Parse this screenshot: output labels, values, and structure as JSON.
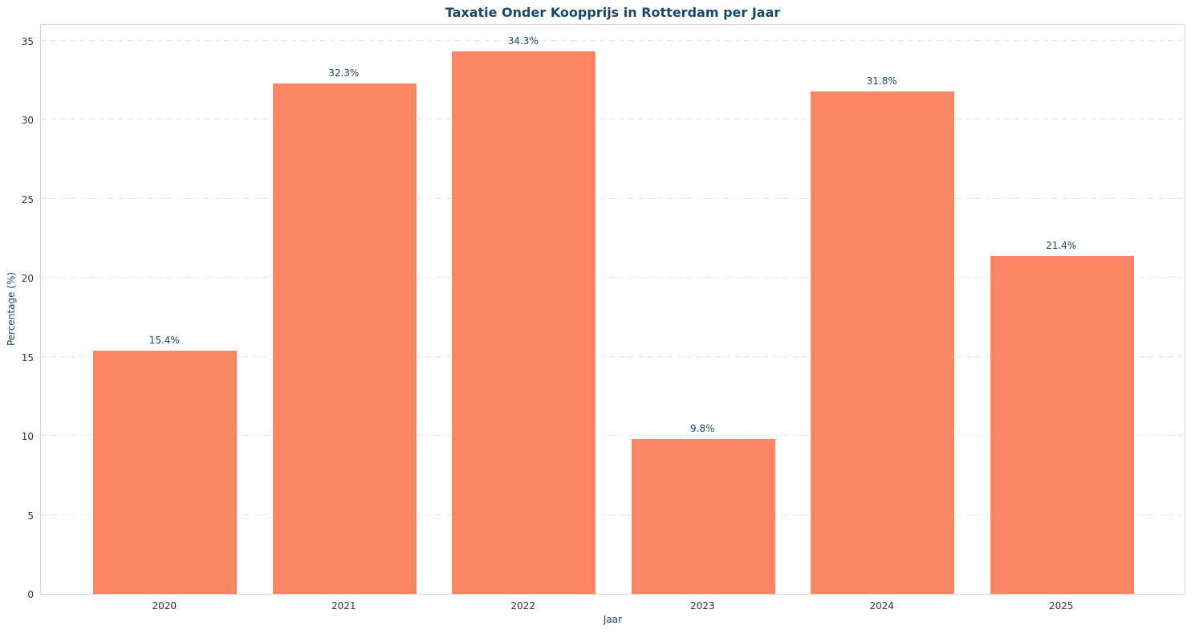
{
  "chart_data": {
    "type": "bar",
    "title": "Taxatie Onder Koopprijs in Rotterdam per Jaar",
    "xlabel": "Jaar",
    "ylabel": "Percentage (%)",
    "categories": [
      "2020",
      "2021",
      "2022",
      "2023",
      "2024",
      "2025"
    ],
    "values": [
      15.4,
      32.3,
      34.3,
      9.8,
      31.8,
      21.4
    ],
    "value_labels": [
      "15.4%",
      "32.3%",
      "34.3%",
      "9.8%",
      "31.8%",
      "21.4%"
    ],
    "yticks": [
      0,
      5,
      10,
      15,
      20,
      25,
      30,
      35
    ],
    "ylim": [
      0,
      36.1
    ],
    "grid": "horizontal-dashed",
    "legend_position": "none",
    "colors": {
      "bar": "#FC8666",
      "title": "#1B4965",
      "axis_label": "#1B4965",
      "tick_label": "#333333",
      "gridline": "#E5E5EA",
      "spine": "#D5D5DA",
      "background": "#FFFFFF"
    }
  }
}
